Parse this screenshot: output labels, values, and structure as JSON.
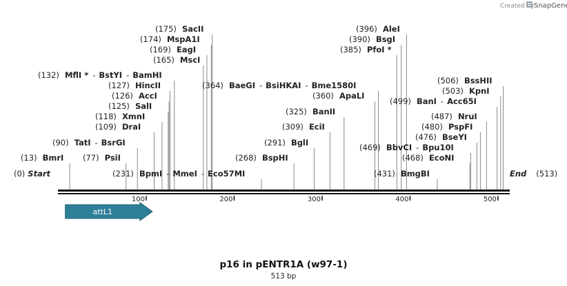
{
  "credit": {
    "prefix": "Created by",
    "brand": "SnapGene"
  },
  "map": {
    "title": "p16 in pENTR1A (w97-1)",
    "length_label": "513 bp",
    "length": 513,
    "start_label": "Start",
    "start_pos": "(0)",
    "end_label": "End",
    "end_pos": "(513)",
    "ruler_ticks": [
      "100",
      "200",
      "300",
      "400",
      "500"
    ],
    "feature": {
      "name": "attL1",
      "start": 8,
      "end": 107,
      "direction": "forward",
      "color": "#2e7f98"
    },
    "sites": [
      {
        "pos": 13,
        "pos_label": "(13)",
        "names": [
          "BmrI"
        ]
      },
      {
        "pos": 77,
        "pos_label": "(77)",
        "names": [
          "PsiI"
        ]
      },
      {
        "pos": 90,
        "pos_label": "(90)",
        "names": [
          "TatI",
          "BsrGI"
        ]
      },
      {
        "pos": 109,
        "pos_label": "(109)",
        "names": [
          "DraI"
        ]
      },
      {
        "pos": 118,
        "pos_label": "(118)",
        "names": [
          "XmnI"
        ]
      },
      {
        "pos": 125,
        "pos_label": "(125)",
        "names": [
          "SalI"
        ]
      },
      {
        "pos": 126,
        "pos_label": "(126)",
        "names": [
          "AccI"
        ]
      },
      {
        "pos": 127,
        "pos_label": "(127)",
        "names": [
          "HincII"
        ]
      },
      {
        "pos": 132,
        "pos_label": "(132)",
        "names": [
          "MflI *",
          "BstYI",
          "BamHI"
        ]
      },
      {
        "pos": 165,
        "pos_label": "(165)",
        "names": [
          "MscI"
        ]
      },
      {
        "pos": 169,
        "pos_label": "(169)",
        "names": [
          "EagI"
        ]
      },
      {
        "pos": 174,
        "pos_label": "(174)",
        "names": [
          "MspA1I"
        ]
      },
      {
        "pos": 175,
        "pos_label": "(175)",
        "names": [
          "SacII"
        ]
      },
      {
        "pos": 231,
        "pos_label": "(231)",
        "names": [
          "BpmI",
          "MmeI",
          "Eco57MI"
        ]
      },
      {
        "pos": 268,
        "pos_label": "(268)",
        "names": [
          "BspHI"
        ]
      },
      {
        "pos": 291,
        "pos_label": "(291)",
        "names": [
          "BglI"
        ]
      },
      {
        "pos": 309,
        "pos_label": "(309)",
        "names": [
          "EciI"
        ]
      },
      {
        "pos": 325,
        "pos_label": "(325)",
        "names": [
          "BanII"
        ]
      },
      {
        "pos": 360,
        "pos_label": "(360)",
        "names": [
          "ApaLI"
        ]
      },
      {
        "pos": 364,
        "pos_label": "(364)",
        "names": [
          "BaeGI",
          "BsiHKAI",
          "Bme1580I"
        ]
      },
      {
        "pos": 385,
        "pos_label": "(385)",
        "names": [
          "PfoI *"
        ]
      },
      {
        "pos": 390,
        "pos_label": "(390)",
        "names": [
          "BsgI"
        ]
      },
      {
        "pos": 396,
        "pos_label": "(396)",
        "names": [
          "AleI"
        ]
      },
      {
        "pos": 431,
        "pos_label": "(431)",
        "names": [
          "BmgBI"
        ]
      },
      {
        "pos": 468,
        "pos_label": "(468)",
        "names": [
          "EcoNI"
        ]
      },
      {
        "pos": 469,
        "pos_label": "(469)",
        "names": [
          "BbvCI",
          "Bpu10I"
        ]
      },
      {
        "pos": 476,
        "pos_label": "(476)",
        "names": [
          "BseYI"
        ]
      },
      {
        "pos": 480,
        "pos_label": "(480)",
        "names": [
          "PspFI"
        ]
      },
      {
        "pos": 487,
        "pos_label": "(487)",
        "names": [
          "NruI"
        ]
      },
      {
        "pos": 499,
        "pos_label": "(499)",
        "names": [
          "BanI",
          "Acc65I"
        ]
      },
      {
        "pos": 503,
        "pos_label": "(503)",
        "names": [
          "KpnI"
        ]
      },
      {
        "pos": 506,
        "pos_label": "(506)",
        "names": [
          "BssHII"
        ]
      }
    ]
  }
}
